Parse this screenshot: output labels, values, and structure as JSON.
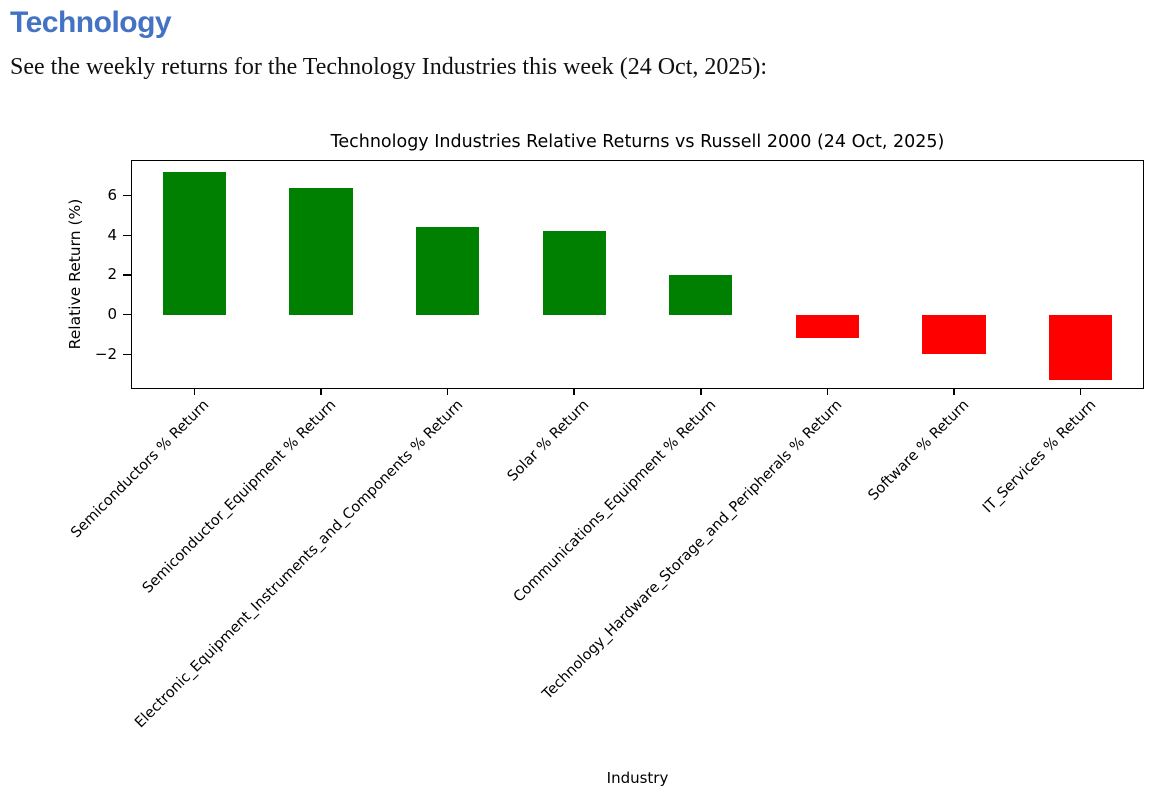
{
  "page": {
    "heading": "Technology",
    "heading_color": "#4472C4",
    "intro": "See the weekly returns for the Technology Industries this week (24 Oct, 2025):"
  },
  "chart_data": {
    "type": "bar",
    "title": "Technology Industries Relative Returns vs Russell 2000 (24 Oct, 2025)",
    "xlabel": "Industry",
    "ylabel": "Relative Return (%)",
    "categories": [
      "Semiconductors % Return",
      "Semiconductor_Equipment % Return",
      "Electronic_Equipment_Instruments_and_Components % Return",
      "Solar % Return",
      "Communications_Equipment % Return",
      "Technology_Hardware_Storage_and_Peripherals % Return",
      "Software % Return",
      "IT_Services % Return"
    ],
    "values": [
      7.2,
      6.4,
      4.4,
      4.2,
      2.0,
      -1.2,
      -2.0,
      -3.3
    ],
    "ylim": [
      -3.75,
      7.8
    ],
    "yticks": [
      -2,
      0,
      2,
      4,
      6
    ],
    "grid": false,
    "legend": "none",
    "positive_color": "#008000",
    "negative_color": "#ff0000",
    "bar_relative_width": 0.5,
    "x_tick_rotation_deg": 45
  }
}
